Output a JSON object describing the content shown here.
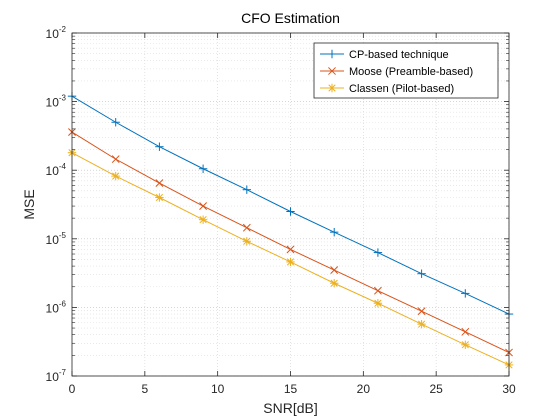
{
  "chart_data": {
    "type": "line",
    "title": "CFO Estimation",
    "xlabel": "SNR[dB]",
    "ylabel": "MSE",
    "xlim": [
      0,
      30
    ],
    "ylim": [
      1e-07,
      0.01
    ],
    "yscale": "log",
    "grid": true,
    "legend_position": "top-right",
    "x_ticks": [
      "0",
      "5",
      "10",
      "15",
      "20",
      "25",
      "30"
    ],
    "y_ticks": [
      {
        "base": "10",
        "exp": "-7"
      },
      {
        "base": "10",
        "exp": "-6"
      },
      {
        "base": "10",
        "exp": "-5"
      },
      {
        "base": "10",
        "exp": "-4"
      },
      {
        "base": "10",
        "exp": "-3"
      },
      {
        "base": "10",
        "exp": "-2"
      }
    ],
    "x": [
      0,
      3,
      6,
      9,
      12,
      15,
      18,
      21,
      24,
      27,
      30
    ],
    "series": [
      {
        "name": "CP-based technique",
        "color": "#0072BD",
        "marker": "plus",
        "values": [
          0.0012,
          0.0005,
          0.00022,
          0.000105,
          5.2e-05,
          2.5e-05,
          1.25e-05,
          6.3e-06,
          3.1e-06,
          1.6e-06,
          8e-07
        ]
      },
      {
        "name": "Moose (Preamble-based)",
        "color": "#D95319",
        "marker": "x",
        "values": [
          0.00036,
          0.000145,
          6.5e-05,
          3e-05,
          1.45e-05,
          7e-06,
          3.5e-06,
          1.75e-06,
          8.8e-07,
          4.4e-07,
          2.2e-07
        ]
      },
      {
        "name": "Classen (Pilot-based)",
        "color": "#EDB120",
        "marker": "asterisk",
        "values": [
          0.00018,
          8.2e-05,
          4e-05,
          1.9e-05,
          9.2e-06,
          4.6e-06,
          2.25e-06,
          1.15e-06,
          5.7e-07,
          2.85e-07,
          1.45e-07
        ]
      }
    ]
  }
}
